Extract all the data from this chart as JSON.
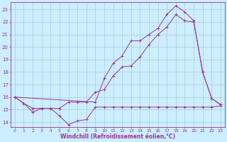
{
  "title": "",
  "xlabel": "Windchill (Refroidissement éolien,°C)",
  "ylabel": "",
  "background_color": "#cceeff",
  "grid_color": "#aacccc",
  "line_color": "#993399",
  "x_ticks": [
    0,
    1,
    2,
    3,
    4,
    5,
    6,
    7,
    8,
    9,
    10,
    11,
    12,
    13,
    14,
    15,
    16,
    17,
    18,
    19,
    20,
    21,
    22,
    23
  ],
  "y_ticks": [
    14,
    15,
    16,
    17,
    18,
    19,
    20,
    21,
    22,
    23
  ],
  "ylim": [
    13.6,
    23.6
  ],
  "xlim": [
    -0.5,
    23.5
  ],
  "line1": {
    "x": [
      0,
      1,
      2,
      3,
      4,
      5,
      6,
      7,
      8,
      9,
      10,
      11,
      12,
      13,
      14,
      15,
      16,
      17,
      18,
      19,
      20,
      21,
      22,
      23
    ],
    "y": [
      16.0,
      15.5,
      14.8,
      15.1,
      15.1,
      14.5,
      13.8,
      14.1,
      14.2,
      15.2,
      15.2,
      15.2,
      15.2,
      15.2,
      15.2,
      15.2,
      15.2,
      15.2,
      15.2,
      15.2,
      15.2,
      15.2,
      15.2,
      15.3
    ]
  },
  "line2": {
    "x": [
      0,
      1,
      2,
      3,
      4,
      5,
      6,
      7,
      8,
      9,
      10,
      11,
      12,
      13,
      14,
      15,
      16,
      17,
      18,
      19,
      20,
      21,
      22,
      23
    ],
    "y": [
      16.0,
      15.5,
      15.1,
      15.1,
      15.1,
      15.1,
      15.6,
      15.6,
      15.6,
      16.4,
      16.6,
      17.7,
      18.4,
      18.5,
      19.2,
      20.2,
      21.0,
      21.6,
      22.6,
      22.1,
      22.0,
      18.0,
      15.9,
      15.4
    ]
  },
  "line3": {
    "x": [
      0,
      9,
      10,
      11,
      12,
      13,
      14,
      15,
      16,
      17,
      18,
      19,
      20,
      21,
      22,
      23
    ],
    "y": [
      16.0,
      15.6,
      17.5,
      18.7,
      19.3,
      20.5,
      20.5,
      21.0,
      21.5,
      22.6,
      23.3,
      22.8,
      22.1,
      18.0,
      15.9,
      15.4
    ]
  }
}
